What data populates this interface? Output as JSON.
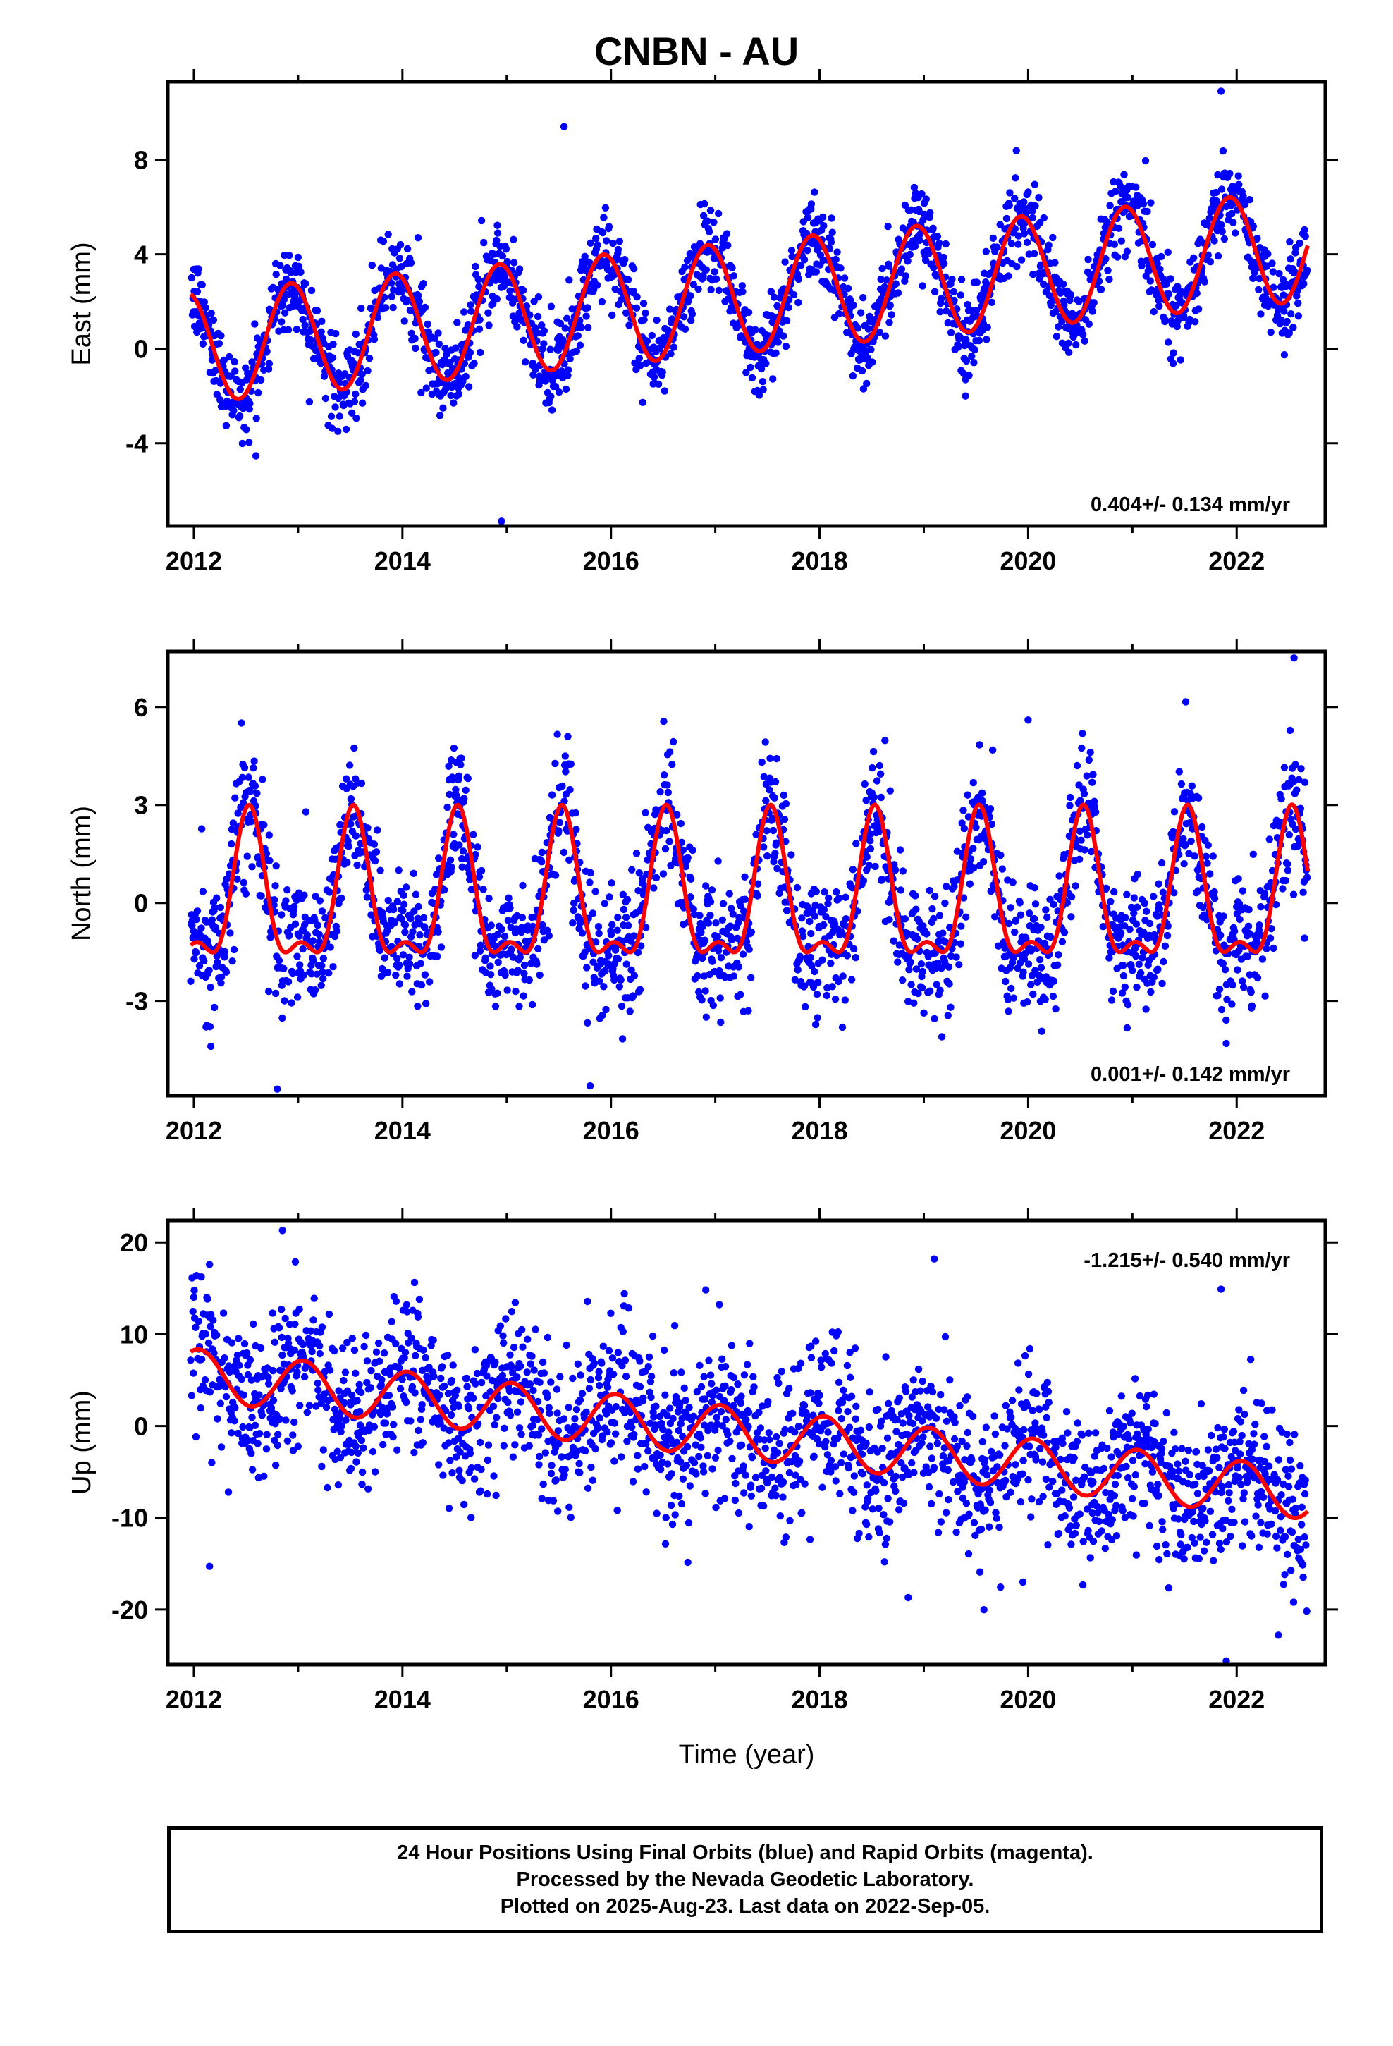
{
  "title": "CNBN - AU",
  "chart_data": [
    {
      "type": "scatter",
      "component": "East",
      "ylabel": "East (mm)",
      "xlabel": "",
      "xlim": [
        2011.75,
        2022.85
      ],
      "ylim": [
        -7.5,
        11.3
      ],
      "xticks": [
        "2012",
        "2014",
        "2016",
        "2018",
        "2020",
        "2022"
      ],
      "yticks": [
        "-4",
        "0",
        "4",
        "8"
      ],
      "rate_text": "0.404+/- 0.134 mm/yr",
      "fit": {
        "rate": 0.404,
        "mean_at_2012": 0.05,
        "annual_amp": 2.35,
        "annual_peak_phase": 0.93,
        "semiannual_amp": 0.0
      },
      "outliers": [
        [
          2015.55,
          9.4
        ],
        [
          2014.15,
          4.7
        ],
        [
          2014.95,
          -7.3
        ],
        [
          2021.85,
          10.9
        ],
        [
          2019.4,
          -2.0
        ]
      ],
      "series": [
        {
          "name": "Final Orbits",
          "color": "#0000ff",
          "x_range": [
            2011.97,
            2022.68
          ],
          "scatter_sd": 0.9
        },
        {
          "name": "Model Fit",
          "color": "#ff0000"
        }
      ]
    },
    {
      "type": "scatter",
      "component": "North",
      "ylabel": "North (mm)",
      "xlabel": "",
      "xlim": [
        2011.75,
        2022.85
      ],
      "ylim": [
        -5.9,
        7.7
      ],
      "xticks": [
        "2012",
        "2014",
        "2016",
        "2018",
        "2020",
        "2022"
      ],
      "yticks": [
        "-3",
        "0",
        "3",
        "6"
      ],
      "rate_text": "0.001+/- 0.142 mm/yr",
      "fit": {
        "rate": 0.001,
        "mean_at_2012": 0.0,
        "annual_amp": 2.1,
        "annual_peak_phase": 0.53,
        "semiannual_amp": 0.9
      },
      "outliers": [
        [
          2021.9,
          -4.3
        ],
        [
          2022.55,
          7.5
        ],
        [
          2020.0,
          5.6
        ],
        [
          2015.8,
          -5.6
        ],
        [
          2012.8,
          -5.7
        ]
      ],
      "series": [
        {
          "name": "Final Orbits",
          "color": "#0000ff",
          "x_range": [
            2011.97,
            2022.68
          ],
          "scatter_sd": 1.0
        },
        {
          "name": "Model Fit",
          "color": "#ff0000"
        }
      ]
    },
    {
      "type": "scatter",
      "component": "Up",
      "ylabel": "Up (mm)",
      "xlabel": "Time (year)",
      "xlim": [
        2011.75,
        2022.85
      ],
      "ylim": [
        -26.0,
        22.4
      ],
      "xticks": [
        "2012",
        "2014",
        "2016",
        "2018",
        "2020",
        "2022"
      ],
      "yticks": [
        "-20",
        "-10",
        "0",
        "10",
        "20"
      ],
      "rate_text": "-1.215+/- 0.540 mm/yr",
      "fit": {
        "rate": -1.215,
        "mean_at_2012": 5.6,
        "annual_amp": 2.8,
        "annual_peak_phase": 0.05,
        "semiannual_amp": 0.0
      },
      "outliers": [
        [
          2012.85,
          21.3
        ],
        [
          2012.15,
          17.6
        ],
        [
          2012.15,
          -15.3
        ],
        [
          2019.1,
          18.2
        ],
        [
          2021.85,
          14.9
        ],
        [
          2021.9,
          -25.6
        ],
        [
          2018.85,
          -18.7
        ],
        [
          2019.95,
          -17.0
        ],
        [
          2022.4,
          -22.8
        ]
      ],
      "series": [
        {
          "name": "Final Orbits",
          "color": "#0000ff",
          "x_range": [
            2011.97,
            2022.68
          ],
          "scatter_sd": 4.3
        },
        {
          "name": "Model Fit",
          "color": "#ff0000"
        }
      ]
    }
  ],
  "caption": {
    "line1": "24 Hour Positions Using Final Orbits (blue) and Rapid Orbits (magenta).",
    "line2": "Processed by the Nevada Geodetic Laboratory.",
    "line3": "Plotted on 2025-Aug-23. Last data on 2022-Sep-05."
  }
}
